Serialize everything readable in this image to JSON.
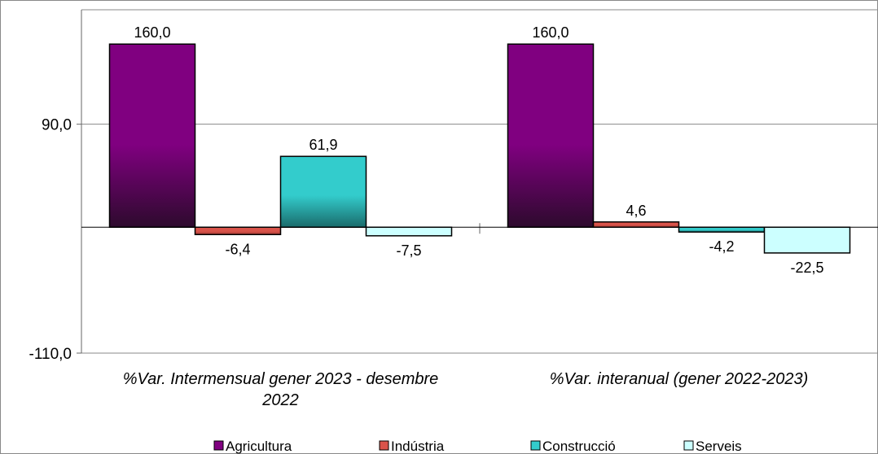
{
  "chart_data": {
    "type": "bar",
    "categories": [
      [
        "%Var. Intermensual gener 2023 - desembre",
        "2022"
      ],
      [
        "%Var. interanual (gener 2022-2023)"
      ]
    ],
    "series": [
      {
        "name": "Agricultura",
        "values": [
          160.0,
          160.0
        ],
        "labels": [
          "160,0",
          "160,0"
        ],
        "color": "#800080",
        "dark": "#2d0a2d"
      },
      {
        "name": "Indústria",
        "values": [
          -6.4,
          4.6
        ],
        "labels": [
          "-6,4",
          "4,6"
        ],
        "color": "#d9534a",
        "dark": "#a53a33"
      },
      {
        "name": "Construcció",
        "values": [
          61.9,
          -4.2
        ],
        "labels": [
          "61,9",
          "-4,2"
        ],
        "color": "#33cccc",
        "dark": "#1a6b6b"
      },
      {
        "name": "Serveis",
        "values": [
          -7.5,
          -22.5
        ],
        "labels": [
          "-7,5",
          "-22,5"
        ],
        "color": "#ccffff",
        "dark": "#ccffff"
      }
    ],
    "yticks": [
      {
        "value": 90,
        "label": "90,0"
      },
      {
        "value": -110,
        "label": "-110,0"
      }
    ],
    "ylim": [
      -110,
      190
    ],
    "grid": true,
    "legend_position": "bottom"
  }
}
